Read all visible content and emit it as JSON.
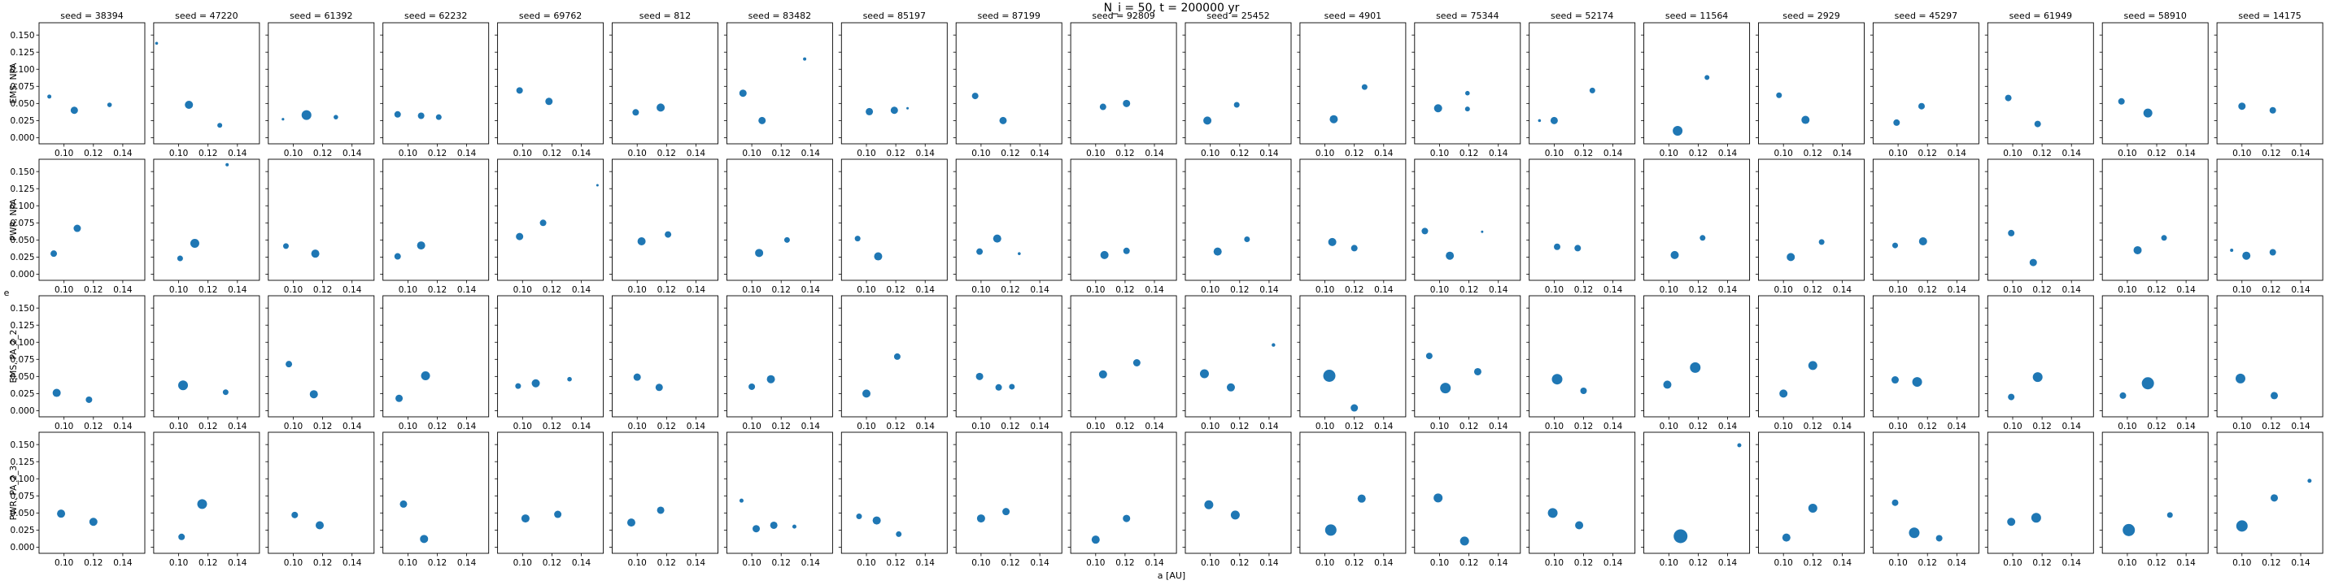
{
  "suptitle": "N_i = 50, t = 200000 yr",
  "xlabel": "a [AU]",
  "ylabel": "e",
  "columns": [
    "seed = 38394",
    "seed = 47220",
    "seed = 61392",
    "seed = 62232",
    "seed = 69762",
    "seed = 812",
    "seed = 83482",
    "seed = 85197",
    "seed = 87199",
    "seed = 92809",
    "seed = 25452",
    "seed = 4901",
    "seed = 75344",
    "seed = 52174",
    "seed = 11564",
    "seed = 2929",
    "seed = 45297",
    "seed = 61949",
    "seed = 58910",
    "seed = 14175"
  ],
  "rows": [
    "EMS, NPA",
    "PWR, NPA",
    "EMS, PA_2_2",
    "PWR, PA_2_3"
  ],
  "chart_data": {
    "type": "scatter",
    "xlim": [
      0.083,
      0.155
    ],
    "ylim": [
      -0.009,
      0.168
    ],
    "xticks": [
      0.1,
      0.12,
      0.14
    ],
    "xtick_labels": [
      "0.10",
      "0.12",
      "0.14"
    ],
    "yticks": [
      0.0,
      0.025,
      0.05,
      0.075,
      0.1,
      0.125,
      0.15
    ],
    "ytick_labels": [
      "0.000",
      "0.025",
      "0.050",
      "0.075",
      "0.100",
      "0.125",
      "0.150"
    ],
    "marker_color": "#1f77b4",
    "point_format": "[a, e, marker_radius]",
    "panels": [
      [
        [
          [
            0.09,
            0.06,
            2.5
          ],
          [
            0.107,
            0.04,
            4.5
          ],
          [
            0.131,
            0.048,
            2.8
          ]
        ],
        [
          [
            0.085,
            0.138,
            1.8
          ],
          [
            0.107,
            0.048,
            5
          ],
          [
            0.128,
            0.018,
            3
          ]
        ],
        [
          [
            0.093,
            0.027,
            1.6
          ],
          [
            0.109,
            0.033,
            6
          ],
          [
            0.129,
            0.03,
            2.8
          ]
        ],
        [
          [
            0.093,
            0.034,
            4
          ],
          [
            0.109,
            0.032,
            4
          ],
          [
            0.121,
            0.03,
            3.5
          ]
        ],
        [
          [
            0.098,
            0.069,
            4
          ],
          [
            0.118,
            0.053,
            4.5
          ]
        ],
        [
          [
            0.099,
            0.037,
            4
          ],
          [
            0.116,
            0.044,
            5
          ]
        ],
        [
          [
            0.094,
            0.065,
            4.5
          ],
          [
            0.107,
            0.025,
            4.5
          ],
          [
            0.136,
            0.115,
            2
          ]
        ],
        [
          [
            0.102,
            0.038,
            4.5
          ],
          [
            0.119,
            0.04,
            4.5
          ],
          [
            0.128,
            0.043,
            1.5
          ]
        ],
        [
          [
            0.096,
            0.061,
            4
          ],
          [
            0.115,
            0.025,
            4.5
          ]
        ],
        [
          [
            0.105,
            0.045,
            4
          ],
          [
            0.121,
            0.05,
            4.5
          ]
        ],
        [
          [
            0.098,
            0.025,
            5
          ],
          [
            0.118,
            0.048,
            3.5
          ]
        ],
        [
          [
            0.106,
            0.027,
            5
          ],
          [
            0.127,
            0.074,
            3.5
          ]
        ],
        [
          [
            0.099,
            0.043,
            5
          ],
          [
            0.119,
            0.065,
            2.8
          ],
          [
            0.119,
            0.042,
            3
          ]
        ],
        [
          [
            0.09,
            0.025,
            1.8
          ],
          [
            0.1,
            0.025,
            4.5
          ],
          [
            0.126,
            0.069,
            3.5
          ]
        ],
        [
          [
            0.106,
            0.01,
            6
          ],
          [
            0.126,
            0.088,
            3
          ]
        ],
        [
          [
            0.097,
            0.062,
            3.5
          ],
          [
            0.115,
            0.026,
            5
          ]
        ],
        [
          [
            0.099,
            0.022,
            4
          ],
          [
            0.116,
            0.046,
            4
          ]
        ],
        [
          [
            0.097,
            0.058,
            4
          ],
          [
            0.117,
            0.02,
            4
          ]
        ],
        [
          [
            0.096,
            0.053,
            4
          ],
          [
            0.114,
            0.036,
            5.5
          ]
        ],
        [
          [
            0.1,
            0.046,
            4.5
          ],
          [
            0.121,
            0.04,
            4
          ]
        ]
      ],
      [
        [
          [
            0.093,
            0.03,
            4
          ],
          [
            0.109,
            0.067,
            4.5
          ]
        ],
        [
          [
            0.101,
            0.023,
            3.5
          ],
          [
            0.111,
            0.045,
            5.5
          ],
          [
            0.133,
            0.16,
            2
          ]
        ],
        [
          [
            0.095,
            0.041,
            3.5
          ],
          [
            0.115,
            0.03,
            5
          ]
        ],
        [
          [
            0.093,
            0.026,
            4
          ],
          [
            0.109,
            0.042,
            5
          ]
        ],
        [
          [
            0.098,
            0.055,
            4.5
          ],
          [
            0.114,
            0.075,
            4
          ],
          [
            0.151,
            0.13,
            1.5
          ]
        ],
        [
          [
            0.103,
            0.048,
            5
          ],
          [
            0.121,
            0.058,
            4
          ]
        ],
        [
          [
            0.105,
            0.031,
            5
          ],
          [
            0.124,
            0.05,
            3.5
          ]
        ],
        [
          [
            0.094,
            0.052,
            3.5
          ],
          [
            0.108,
            0.026,
            5
          ]
        ],
        [
          [
            0.099,
            0.033,
            4
          ],
          [
            0.111,
            0.052,
            5
          ],
          [
            0.126,
            0.03,
            1.8
          ]
        ],
        [
          [
            0.106,
            0.028,
            5
          ],
          [
            0.121,
            0.034,
            4
          ]
        ],
        [
          [
            0.105,
            0.033,
            5
          ],
          [
            0.125,
            0.051,
            3.5
          ]
        ],
        [
          [
            0.105,
            0.047,
            5
          ],
          [
            0.12,
            0.038,
            4
          ]
        ],
        [
          [
            0.09,
            0.063,
            4
          ],
          [
            0.107,
            0.027,
            5
          ],
          [
            0.129,
            0.062,
            1.5
          ]
        ],
        [
          [
            0.102,
            0.04,
            4
          ],
          [
            0.116,
            0.038,
            4
          ]
        ],
        [
          [
            0.104,
            0.028,
            5
          ],
          [
            0.123,
            0.053,
            3.5
          ]
        ],
        [
          [
            0.105,
            0.025,
            5
          ],
          [
            0.126,
            0.047,
            3.5
          ]
        ],
        [
          [
            0.098,
            0.042,
            3.5
          ],
          [
            0.117,
            0.048,
            5
          ]
        ],
        [
          [
            0.099,
            0.06,
            4
          ],
          [
            0.114,
            0.017,
            4.5
          ]
        ],
        [
          [
            0.107,
            0.035,
            5
          ],
          [
            0.125,
            0.053,
            3.5
          ]
        ],
        [
          [
            0.093,
            0.035,
            2
          ],
          [
            0.103,
            0.027,
            5
          ],
          [
            0.121,
            0.032,
            4
          ]
        ]
      ],
      [
        [
          [
            0.095,
            0.026,
            5
          ],
          [
            0.117,
            0.016,
            4
          ]
        ],
        [
          [
            0.103,
            0.037,
            6
          ],
          [
            0.132,
            0.027,
            3.5
          ]
        ],
        [
          [
            0.097,
            0.068,
            4
          ],
          [
            0.114,
            0.024,
            5
          ]
        ],
        [
          [
            0.094,
            0.018,
            4.5
          ],
          [
            0.112,
            0.051,
            5.5
          ]
        ],
        [
          [
            0.097,
            0.036,
            3.5
          ],
          [
            0.109,
            0.04,
            5
          ],
          [
            0.132,
            0.046,
            2.8
          ]
        ],
        [
          [
            0.1,
            0.049,
            4.5
          ],
          [
            0.115,
            0.034,
            4.5
          ]
        ],
        [
          [
            0.1,
            0.035,
            4
          ],
          [
            0.113,
            0.046,
            5
          ]
        ],
        [
          [
            0.1,
            0.025,
            5
          ],
          [
            0.121,
            0.079,
            4
          ]
        ],
        [
          [
            0.099,
            0.05,
            4.5
          ],
          [
            0.112,
            0.034,
            4
          ],
          [
            0.121,
            0.035,
            3.5
          ]
        ],
        [
          [
            0.105,
            0.053,
            5
          ],
          [
            0.128,
            0.07,
            4.5
          ]
        ],
        [
          [
            0.096,
            0.054,
            5.5
          ],
          [
            0.114,
            0.034,
            5
          ],
          [
            0.143,
            0.096,
            2.2
          ]
        ],
        [
          [
            0.103,
            0.051,
            7.5
          ],
          [
            0.12,
            0.004,
            4.5
          ]
        ],
        [
          [
            0.093,
            0.08,
            4
          ],
          [
            0.104,
            0.033,
            6.5
          ],
          [
            0.126,
            0.057,
            4.5
          ]
        ],
        [
          [
            0.102,
            0.046,
            6.5
          ],
          [
            0.12,
            0.029,
            4
          ]
        ],
        [
          [
            0.099,
            0.038,
            5
          ],
          [
            0.118,
            0.063,
            6.5
          ]
        ],
        [
          [
            0.1,
            0.025,
            5
          ],
          [
            0.12,
            0.066,
            5.5
          ]
        ],
        [
          [
            0.098,
            0.045,
            4.5
          ],
          [
            0.113,
            0.042,
            6
          ]
        ],
        [
          [
            0.099,
            0.02,
            4
          ],
          [
            0.117,
            0.049,
            6
          ]
        ],
        [
          [
            0.097,
            0.022,
            4
          ],
          [
            0.114,
            0.04,
            7.5
          ]
        ],
        [
          [
            0.099,
            0.047,
            6
          ],
          [
            0.122,
            0.022,
            4.5
          ]
        ]
      ],
      [
        [
          [
            0.098,
            0.049,
            5
          ],
          [
            0.12,
            0.037,
            5
          ]
        ],
        [
          [
            0.102,
            0.015,
            4
          ],
          [
            0.116,
            0.063,
            6
          ]
        ],
        [
          [
            0.101,
            0.047,
            4
          ],
          [
            0.118,
            0.032,
            5
          ]
        ],
        [
          [
            0.097,
            0.063,
            4.5
          ],
          [
            0.111,
            0.012,
            5
          ]
        ],
        [
          [
            0.102,
            0.042,
            5
          ],
          [
            0.124,
            0.048,
            4.5
          ]
        ],
        [
          [
            0.096,
            0.036,
            5
          ],
          [
            0.116,
            0.054,
            4.5
          ]
        ],
        [
          [
            0.093,
            0.068,
            2.5
          ],
          [
            0.103,
            0.027,
            4.5
          ],
          [
            0.115,
            0.032,
            4.5
          ],
          [
            0.129,
            0.03,
            2.5
          ]
        ],
        [
          [
            0.095,
            0.045,
            3.5
          ],
          [
            0.107,
            0.039,
            5
          ],
          [
            0.122,
            0.019,
            3.5
          ]
        ],
        [
          [
            0.1,
            0.042,
            5
          ],
          [
            0.117,
            0.052,
            4.5
          ]
        ],
        [
          [
            0.1,
            0.011,
            5
          ],
          [
            0.121,
            0.042,
            4.5
          ]
        ],
        [
          [
            0.099,
            0.062,
            5.5
          ],
          [
            0.117,
            0.047,
            5.5
          ]
        ],
        [
          [
            0.104,
            0.025,
            7
          ],
          [
            0.125,
            0.071,
            5
          ]
        ],
        [
          [
            0.099,
            0.072,
            5.5
          ],
          [
            0.117,
            0.009,
            5.5
          ]
        ],
        [
          [
            0.099,
            0.05,
            6
          ],
          [
            0.117,
            0.032,
            5
          ]
        ],
        [
          [
            0.108,
            0.016,
            8.5
          ],
          [
            0.148,
            0.149,
            2.5
          ]
        ],
        [
          [
            0.102,
            0.014,
            5
          ],
          [
            0.12,
            0.057,
            5.5
          ]
        ],
        [
          [
            0.098,
            0.065,
            4
          ],
          [
            0.111,
            0.021,
            6.5
          ],
          [
            0.128,
            0.013,
            4
          ]
        ],
        [
          [
            0.099,
            0.037,
            5
          ],
          [
            0.116,
            0.043,
            6
          ]
        ],
        [
          [
            0.101,
            0.025,
            7.5
          ],
          [
            0.129,
            0.047,
            3.5
          ]
        ],
        [
          [
            0.1,
            0.031,
            7
          ],
          [
            0.122,
            0.072,
            4.5
          ],
          [
            0.146,
            0.097,
            2.5
          ]
        ]
      ]
    ]
  }
}
